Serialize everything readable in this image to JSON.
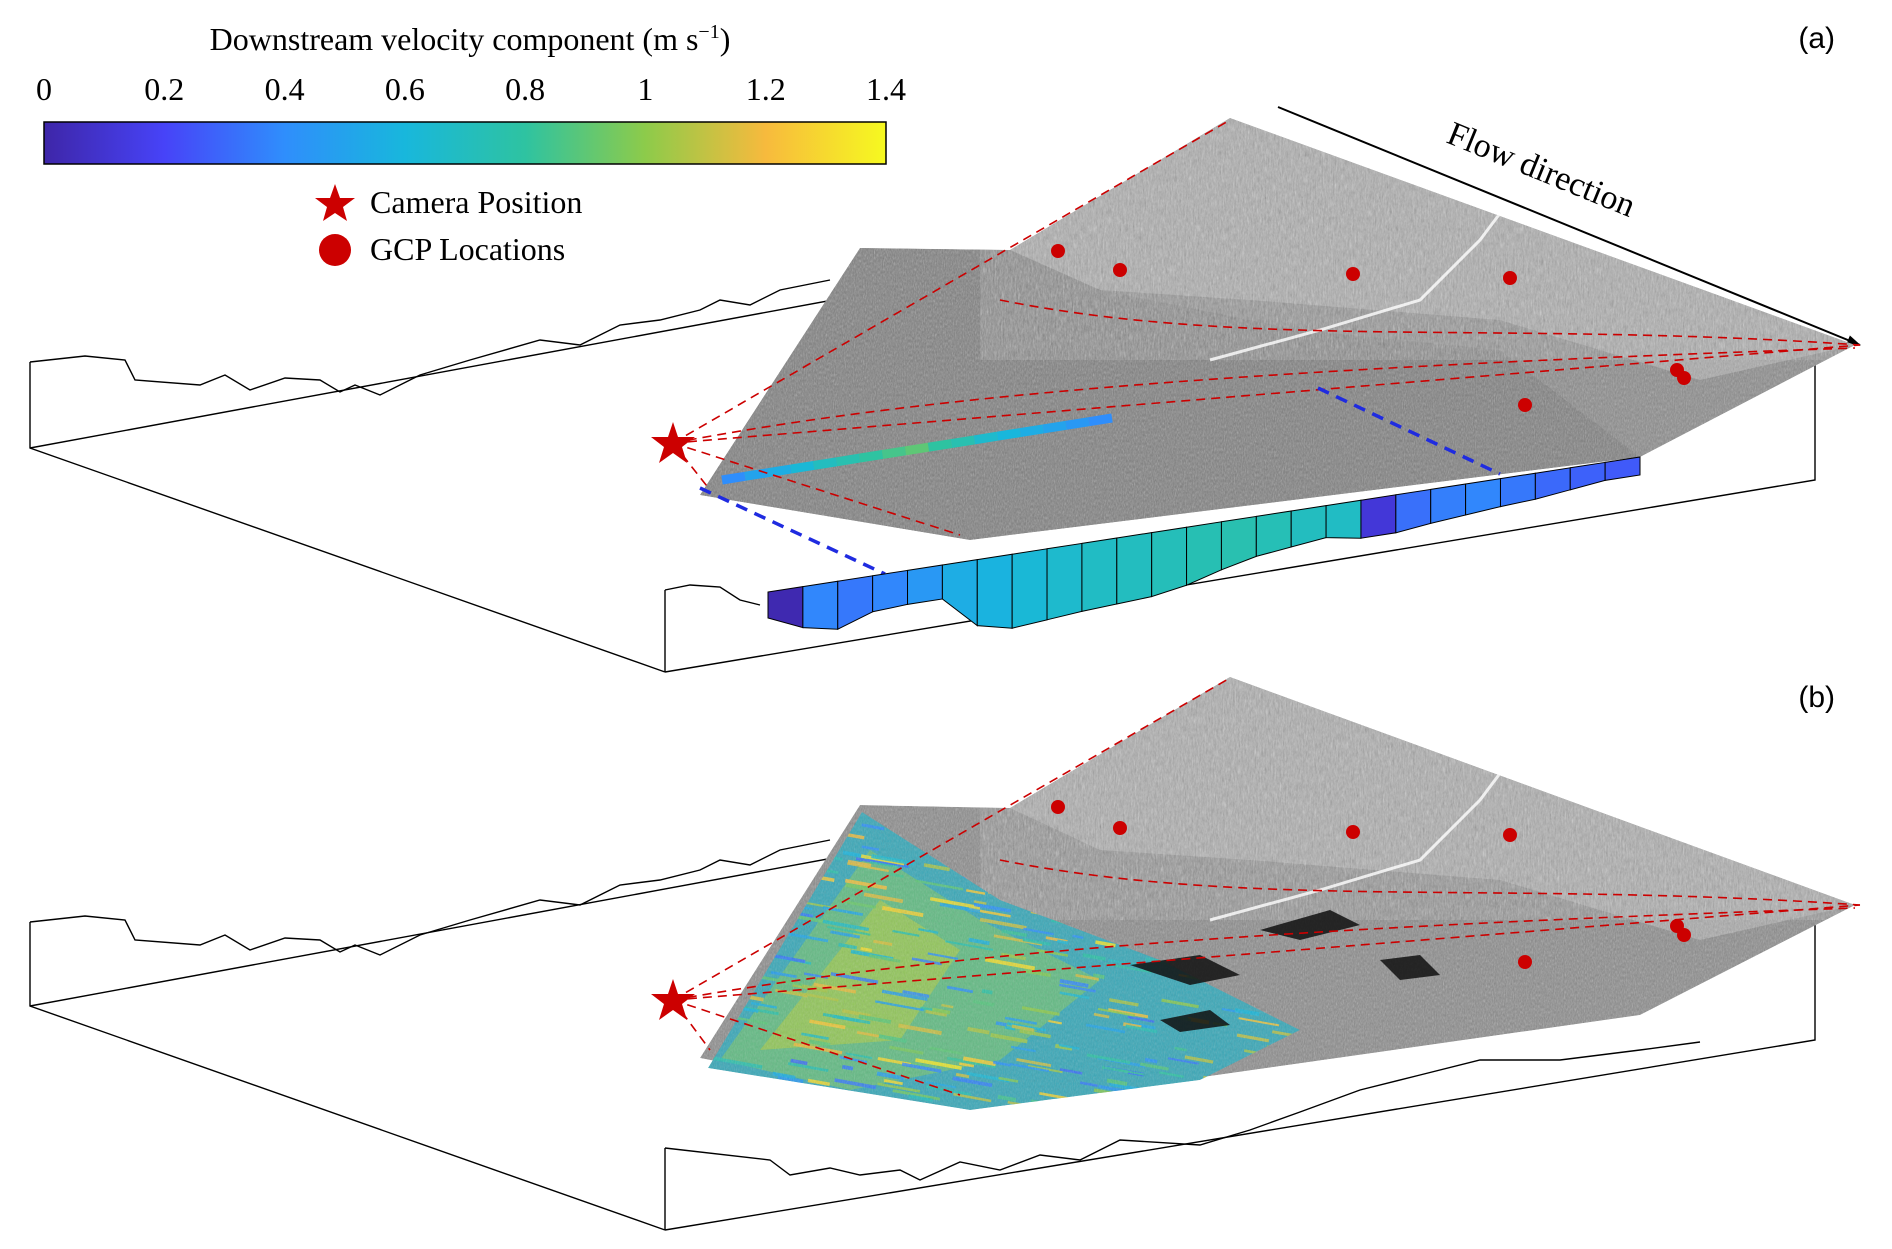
{
  "colorbar": {
    "title": "Downstream velocity component (m s",
    "title_exp": "−1",
    "title_close": ")",
    "ticks": [
      "0",
      "0.2",
      "0.4",
      "0.6",
      "0.8",
      "1",
      "1.2",
      "1.4"
    ],
    "min": 0,
    "max": 1.4,
    "colors": [
      "#3e26a8",
      "#4743f8",
      "#2f8efc",
      "#18b7dc",
      "#2ec3a1",
      "#8dcb4a",
      "#f7ba3d",
      "#f6f920"
    ]
  },
  "legend": {
    "camera": "Camera Position",
    "gcp": "GCP Locations",
    "marker_color": "#cc0000"
  },
  "panels": {
    "a": "(a)",
    "b": "(b)"
  },
  "flow_label": "Flow direction",
  "cross_section_values": [
    0.02,
    0.38,
    0.34,
    0.38,
    0.45,
    0.55,
    0.58,
    0.62,
    0.65,
    0.68,
    0.7,
    0.72,
    0.74,
    0.75,
    0.73,
    0.7,
    0.68,
    0.12,
    0.32,
    0.36,
    0.38,
    0.34,
    0.3,
    0.28,
    0.26
  ],
  "transect_values": [
    0.4,
    0.5,
    0.55,
    0.62,
    0.7,
    0.75,
    0.8,
    0.85,
    0.9,
    0.8,
    0.75,
    0.65,
    0.6,
    0.55,
    0.5,
    0.45,
    0.4
  ]
}
